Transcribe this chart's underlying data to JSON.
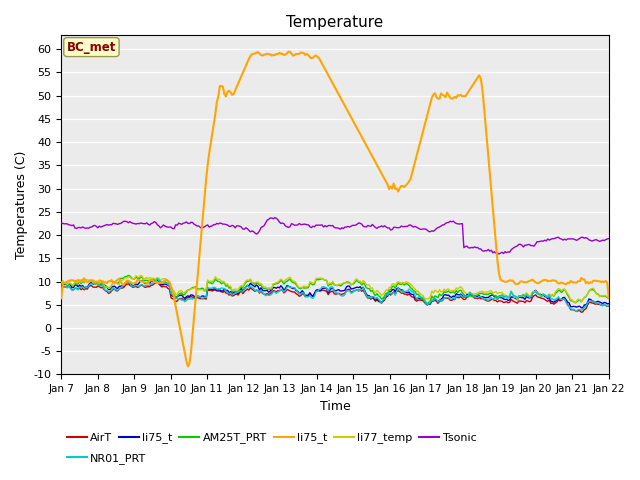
{
  "title": "Temperature",
  "xlabel": "Time",
  "ylabel": "Temperatures (C)",
  "ylim": [
    -10,
    63
  ],
  "yticks": [
    -10,
    -5,
    0,
    5,
    10,
    15,
    20,
    25,
    30,
    35,
    40,
    45,
    50,
    55,
    60
  ],
  "xlim_days": 15,
  "xtick_labels": [
    "Jan 7",
    "Jan 8",
    "Jan 9",
    "Jan 10",
    "Jan 11",
    "Jan 12",
    "Jan 13",
    "Jan 14",
    "Jan 15",
    "Jan 16",
    "Jan 17",
    "Jan 18",
    "Jan 19",
    "Jan 20",
    "Jan 21",
    "Jan 22"
  ],
  "annotation_text": "BC_met",
  "annotation_color": "#8B0000",
  "annotation_bg": "#FFFFCC",
  "plot_bg_color": "#EBEBEB",
  "series": {
    "AirT": {
      "color": "#CC0000",
      "lw": 1.0
    },
    "li75_t_blue": {
      "color": "#0000CC",
      "lw": 1.0
    },
    "AM25T_PRT": {
      "color": "#00CC00",
      "lw": 1.0
    },
    "li75_t_orange": {
      "color": "#FFA500",
      "lw": 1.5
    },
    "li77_temp": {
      "color": "#CCCC00",
      "lw": 1.0
    },
    "Tsonic": {
      "color": "#9900CC",
      "lw": 1.0
    },
    "NR01_PRT": {
      "color": "#00CCCC",
      "lw": 1.0
    }
  },
  "legend_entries": [
    {
      "label": "AirT",
      "color": "#CC0000"
    },
    {
      "label": "li75_t",
      "color": "#0000CC"
    },
    {
      "label": "AM25T_PRT",
      "color": "#00CC00"
    },
    {
      "label": "li75_t",
      "color": "#FFA500"
    },
    {
      "label": "li77_temp",
      "color": "#CCCC00"
    },
    {
      "label": "Tsonic",
      "color": "#9900CC"
    },
    {
      "label": "NR01_PRT",
      "color": "#00CCCC"
    }
  ]
}
